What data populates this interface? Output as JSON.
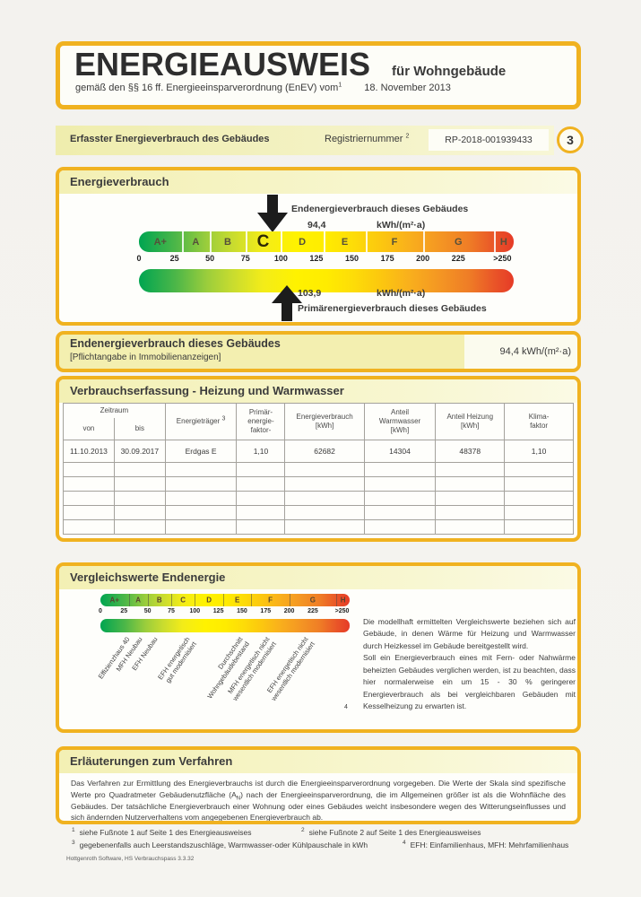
{
  "page": {
    "title": "ENERGIEAUSWEIS",
    "title_suffix": "für Wohngebäude",
    "law_text": "gemäß den §§ 16 ff. Energieeinsparverordnung (EnEV) vom",
    "law_sup": "1",
    "law_date": "18. November 2013"
  },
  "reg_bar": {
    "label": "Erfasster Energieverbrauch des Gebäudes",
    "registry_label": "Registriernummer",
    "registry_sup": "2",
    "registry_number": "RP-2018-001939433",
    "page_number": "3"
  },
  "energy": {
    "section_title": "Energieverbrauch",
    "end_label": "Endenergieverbrauch dieses Gebäudes",
    "end_value": "94,4",
    "end_value_num": 94.4,
    "end_unit": "kWh/(m²·a)",
    "primary_value": "103,9",
    "primary_value_num": 103.9,
    "primary_unit": "kWh/(m²·a)",
    "primary_label": "Primärenergieverbrauch dieses Gebäudes"
  },
  "scale": {
    "classes": [
      "A+",
      "A",
      "B",
      "C",
      "D",
      "E",
      "F",
      "G",
      "H"
    ],
    "boundaries": [
      0,
      30,
      50,
      75,
      100,
      130,
      160,
      200,
      250,
      264
    ],
    "axis_max": 264,
    "rating": "C",
    "ticks": [
      {
        "label": "0",
        "v": 0
      },
      {
        "label": "25",
        "v": 25
      },
      {
        "label": "50",
        "v": 50
      },
      {
        "label": "75",
        "v": 75
      },
      {
        "label": "100",
        "v": 100
      },
      {
        "label": "125",
        "v": 125
      },
      {
        "label": "150",
        "v": 150
      },
      {
        "label": "175",
        "v": 175
      },
      {
        "label": "200",
        "v": 200
      },
      {
        "label": "225",
        "v": 225
      },
      {
        "label": ">250",
        "v": 256
      }
    ]
  },
  "end_band": {
    "title": "Endenergieverbrauch dieses Gebäudes",
    "note": "[Pflichtangabe in Immobilienanzeigen]",
    "value": "94,4 kWh/(m²·a)"
  },
  "consumption": {
    "section_title": "Verbrauchserfassung - Heizung und Warmwasser",
    "h_zeitraum": "Zeitraum",
    "h_von": "von",
    "h_bis": "bis",
    "h_energietraeger": "Energieträger",
    "h_energietraeger_sup": "3",
    "h_pf": [
      "Primär-",
      "energie-",
      "faktor-"
    ],
    "h_ev": [
      "Energieverbrauch",
      "[kWh]"
    ],
    "h_aw": [
      "Anteil",
      "Warmwasser",
      "[kWh]"
    ],
    "h_ah": [
      "Anteil Heizung",
      "[kWh]"
    ],
    "h_kf": [
      "Klima-",
      "faktor"
    ],
    "row": [
      "11.10.2013",
      "30.09.2017",
      "Erdgas E",
      "1,10",
      "62682",
      "14304",
      "48378",
      "1,10"
    ],
    "empty_rows": 5
  },
  "comparison": {
    "section_title": "Vergleichswerte Endenergie",
    "labels": [
      {
        "lines": [
          "Effizienzhaus 40"
        ],
        "value": 27
      },
      {
        "lines": [
          "MFH Neubau"
        ],
        "value": 40
      },
      {
        "lines": [
          "EFH Neubau"
        ],
        "value": 56
      },
      {
        "lines": [
          "EFH energetisch",
          "gut modernisiert"
        ],
        "value": 90
      },
      {
        "lines": [
          "Durchschnitt",
          "Wohngebäudebestand"
        ],
        "value": 146
      },
      {
        "lines": [
          "MFH energetisch nicht",
          "wesentlich modernisiert"
        ],
        "value": 175
      },
      {
        "lines": [
          "EFH energetisch nicht",
          "wesentlich modernisiert"
        ],
        "value": 216
      }
    ],
    "footnote_ref": "4",
    "paragraph1": "Die modellhaft ermittelten Vergleichswerte beziehen sich auf Gebäude, in denen Wärme für Heizung und Warmwasser durch Heizkessel im Gebäude bereitgestellt wird.",
    "paragraph2": "Soll ein Energieverbrauch eines mit Fern- oder Nahwärme beheizten Gebäudes verglichen werden, ist zu beachten, dass hier normalerweise ein um 15 - 30 % geringerer Energieverbrauch als bei vergleichbaren Gebäuden mit Kesselheizung zu erwarten ist."
  },
  "explanation": {
    "section_title": "Erläuterungen zum Verfahren",
    "text_before": "Das Verfahren zur Ermittlung des Energieverbrauchs ist durch die Energieeinsparverordnung vorgegeben. Die Werte der Skala sind spezifische Werte pro Quadratmeter Gebäudenutzfläche (A",
    "text_sub": "N",
    "text_after": ") nach der Energieeinsparverordnung, die im Allgemeinen größer ist als die Wohnfläche des Gebäudes. Der tatsächliche Energieverbrauch einer Wohnung oder eines Gebäudes weicht insbesondere wegen des Witterungseinflusses und sich ändernden Nutzerverhaltens vom angegebenen Energieverbrauch ab."
  },
  "footnotes": [
    {
      "sup": "1",
      "text": "siehe Fußnote 1 auf Seite 1 des Energieausweises"
    },
    {
      "sup": "2",
      "text": "siehe Fußnote 2 auf Seite 1 des Energieausweises"
    },
    {
      "sup": "3",
      "text": "gegebenenfalls auch Leerstandszuschläge, Warmwasser-oder Kühlpauschale in kWh"
    },
    {
      "sup": "4",
      "text": "EFH: Einfamilienhaus, MFH: Mehrfamilienhaus"
    }
  ],
  "footer": "Hottgenroth Software, HS Verbrauchspass 3.3.32",
  "colors": {
    "accent_border": "#f0b220",
    "band_yellow": "#f3f0b4",
    "scale_green": "#00a551",
    "scale_yellow": "#fff200",
    "scale_red": "#e63b27",
    "arrow_black": "#1c1c1c"
  }
}
